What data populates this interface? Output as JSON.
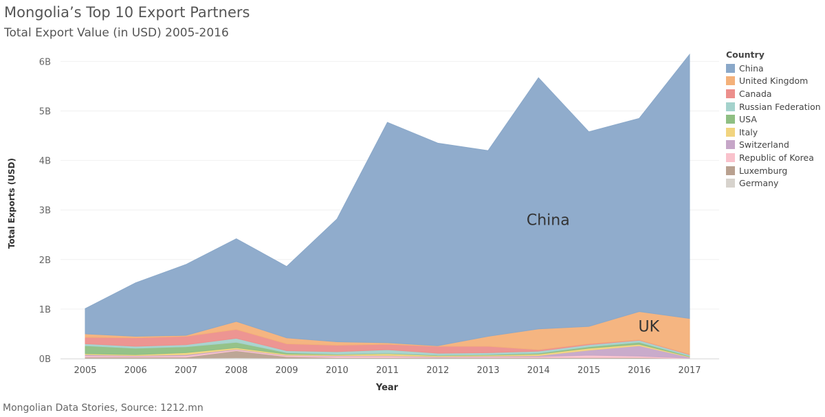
{
  "header": {
    "title": "Mongolia’s Top 10 Export Partners",
    "subtitle": "Total Export Value (in USD) 2005-2016"
  },
  "footer": {
    "source": "Mongolian Data Stories, Source: 1212.mn"
  },
  "chart_data": {
    "type": "area",
    "stacked": true,
    "xlabel": "Year",
    "ylabel": "Total Exports (USD)",
    "ylim": [
      0,
      6200000000
    ],
    "grid": true,
    "legend_title": "Country",
    "legend_position": "right",
    "x": [
      "2005",
      "2006",
      "2007",
      "2008",
      "2009",
      "2010",
      "2011",
      "2012",
      "2013",
      "2014",
      "2015",
      "2016",
      "2017"
    ],
    "y_ticks": [
      {
        "value": 0,
        "label": "0B"
      },
      {
        "value": 1000000000,
        "label": "1B"
      },
      {
        "value": 2000000000,
        "label": "2B"
      },
      {
        "value": 3000000000,
        "label": "3B"
      },
      {
        "value": 4000000000,
        "label": "4B"
      },
      {
        "value": 5000000000,
        "label": "5B"
      },
      {
        "value": 6000000000,
        "label": "6B"
      }
    ],
    "series": [
      {
        "name": "Germany",
        "color": "#d7d3cd",
        "values": [
          0.01,
          0.01,
          0.01,
          0.02,
          0.01,
          0.01,
          0.01,
          0.01,
          0.01,
          0.01,
          0.01,
          0.01,
          0.0
        ]
      },
      {
        "name": "Luxemburg",
        "color": "#b9a190",
        "values": [
          0.02,
          0.02,
          0.02,
          0.14,
          0.03,
          0.01,
          0.01,
          0.01,
          0.01,
          0.01,
          0.01,
          0.01,
          0.0
        ]
      },
      {
        "name": "Republic of Korea",
        "color": "#f9c2cc",
        "values": [
          0.03,
          0.02,
          0.03,
          0.02,
          0.02,
          0.03,
          0.03,
          0.01,
          0.02,
          0.02,
          0.05,
          0.03,
          0.01
        ]
      },
      {
        "name": "Switzerland",
        "color": "#c6a6c8",
        "values": [
          0.02,
          0.01,
          0.02,
          0.01,
          0.01,
          0.01,
          0.01,
          0.01,
          0.01,
          0.02,
          0.1,
          0.21,
          0.02
        ]
      },
      {
        "name": "Italy",
        "color": "#f1d47f",
        "values": [
          0.02,
          0.02,
          0.04,
          0.03,
          0.02,
          0.02,
          0.04,
          0.02,
          0.02,
          0.03,
          0.04,
          0.03,
          0.01
        ]
      },
      {
        "name": "USA",
        "color": "#8fbf83",
        "values": [
          0.16,
          0.13,
          0.12,
          0.11,
          0.03,
          0.01,
          0.01,
          0.01,
          0.01,
          0.02,
          0.03,
          0.04,
          0.01
        ]
      },
      {
        "name": "Russian Federation",
        "color": "#a4d2cc",
        "values": [
          0.04,
          0.04,
          0.04,
          0.08,
          0.04,
          0.05,
          0.07,
          0.04,
          0.04,
          0.04,
          0.04,
          0.04,
          0.03
        ]
      },
      {
        "name": "Canada",
        "color": "#ec8f8c",
        "values": [
          0.13,
          0.17,
          0.17,
          0.18,
          0.14,
          0.13,
          0.11,
          0.14,
          0.13,
          0.03,
          0.02,
          0.01,
          0.01
        ]
      },
      {
        "name": "United Kingdom",
        "color": "#f4b17a",
        "values": [
          0.07,
          0.03,
          0.02,
          0.16,
          0.12,
          0.07,
          0.03,
          0.01,
          0.2,
          0.42,
          0.35,
          0.57,
          0.72
        ]
      },
      {
        "name": "China",
        "color": "#8aa8c9",
        "values": [
          0.51,
          1.08,
          1.43,
          1.67,
          1.44,
          2.48,
          4.45,
          4.09,
          3.75,
          5.07,
          3.93,
          3.9,
          5.33
        ]
      }
    ],
    "legend_order": [
      "China",
      "United Kingdom",
      "Canada",
      "Russian Federation",
      "USA",
      "Italy",
      "Switzerland",
      "Republic of Korea",
      "Luxemburg",
      "Germany"
    ],
    "annotations": [
      {
        "text": "China",
        "x": "2014",
        "y": 2700000000
      },
      {
        "text": "UK",
        "x": "2016",
        "y": 550000000
      }
    ]
  }
}
